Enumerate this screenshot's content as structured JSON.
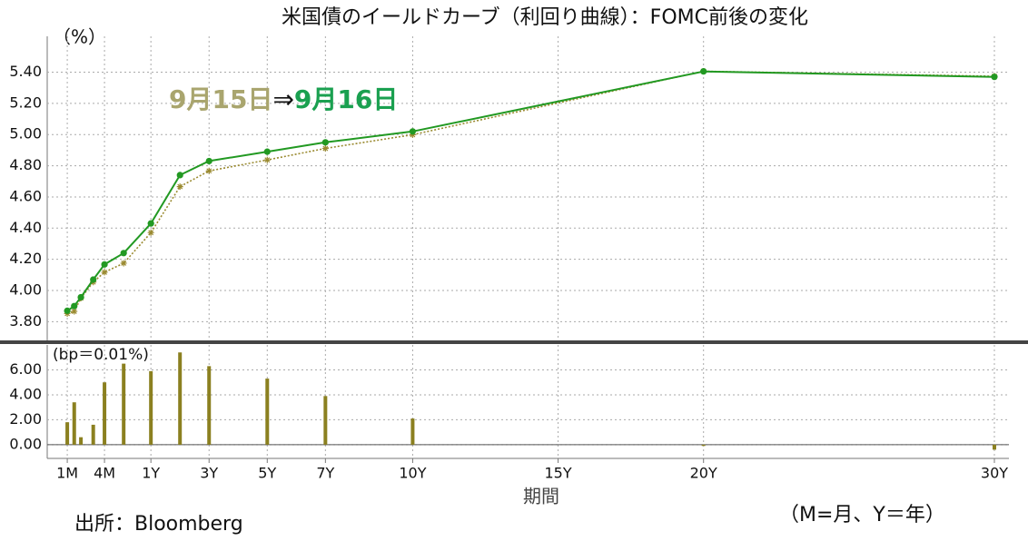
{
  "chart_data": [
    {
      "type": "line",
      "title": "米国債のイールドカーブ（利回り曲線）：FOMC前後の変化",
      "ylabel": "（%）",
      "annotation": "⇒",
      "x": [
        0.083,
        0.125,
        0.167,
        0.25,
        0.333,
        0.5,
        1,
        2,
        3,
        5,
        7,
        10,
        20,
        30
      ],
      "xlim": [
        -0.03,
        30.5
      ],
      "ylim": [
        3.68,
        5.63
      ],
      "yticks": [
        {
          "value": 3.8,
          "label": "3.80"
        },
        {
          "value": 4.0,
          "label": "4.00"
        },
        {
          "value": 4.2,
          "label": "4.20"
        },
        {
          "value": 4.4,
          "label": "4.40"
        },
        {
          "value": 4.6,
          "label": "4.60"
        },
        {
          "value": 4.8,
          "label": "4.80"
        },
        {
          "value": 5.0,
          "label": "5.00"
        },
        {
          "value": 5.2,
          "label": "5.20"
        },
        {
          "value": 5.4,
          "label": "5.40"
        }
      ],
      "grid": true,
      "series": [
        {
          "name": "9月15日",
          "color": "#9a8a30",
          "label_color": "#a9a56e",
          "style": "dotted",
          "marker": "star",
          "values": [
            3.852,
            3.866,
            3.951,
            4.054,
            4.117,
            4.175,
            4.371,
            4.666,
            4.767,
            4.837,
            4.911,
            4.999,
            5.406,
            5.374
          ]
        },
        {
          "name": "9月16日",
          "color": "#229922",
          "label_color": "#1aa050",
          "style": "solid",
          "marker": "circle",
          "values": [
            3.87,
            3.9,
            3.957,
            4.07,
            4.167,
            4.24,
            4.43,
            4.74,
            4.83,
            4.89,
            4.95,
            5.02,
            5.405,
            5.37
          ]
        }
      ]
    },
    {
      "type": "bar",
      "ylabel": "(bp＝0.01%)",
      "xlabel": "期間",
      "color": "#8b8020",
      "x": [
        0.083,
        0.125,
        0.167,
        0.25,
        0.333,
        0.5,
        1,
        2,
        3,
        5,
        7,
        10,
        20,
        30
      ],
      "values": [
        1.8,
        3.4,
        0.6,
        1.6,
        5.0,
        6.5,
        5.9,
        7.4,
        6.3,
        5.3,
        3.9,
        2.1,
        -0.1,
        -0.4
      ],
      "xlim": [
        -0.03,
        30.5
      ],
      "ylim": [
        -1.1,
        8.0
      ],
      "yticks": [
        {
          "value": 0,
          "label": "0.00"
        },
        {
          "value": 2,
          "label": "2.00"
        },
        {
          "value": 4,
          "label": "4.00"
        },
        {
          "value": 6,
          "label": "6.00"
        }
      ],
      "xticks": [
        {
          "value": 0.083,
          "label": "1M"
        },
        {
          "value": 0.333,
          "label": "4M"
        },
        {
          "value": 1,
          "label": "1Y"
        },
        {
          "value": 3,
          "label": "3Y"
        },
        {
          "value": 5,
          "label": "5Y"
        },
        {
          "value": 7,
          "label": "7Y"
        },
        {
          "value": 10,
          "label": "10Y"
        },
        {
          "value": 15,
          "label": "15Y"
        },
        {
          "value": 20,
          "label": "20Y"
        },
        {
          "value": 30,
          "label": "30Y"
        }
      ],
      "grid": true
    }
  ],
  "source": "出所：Bloomberg",
  "note": "（M=月、Y＝年）"
}
